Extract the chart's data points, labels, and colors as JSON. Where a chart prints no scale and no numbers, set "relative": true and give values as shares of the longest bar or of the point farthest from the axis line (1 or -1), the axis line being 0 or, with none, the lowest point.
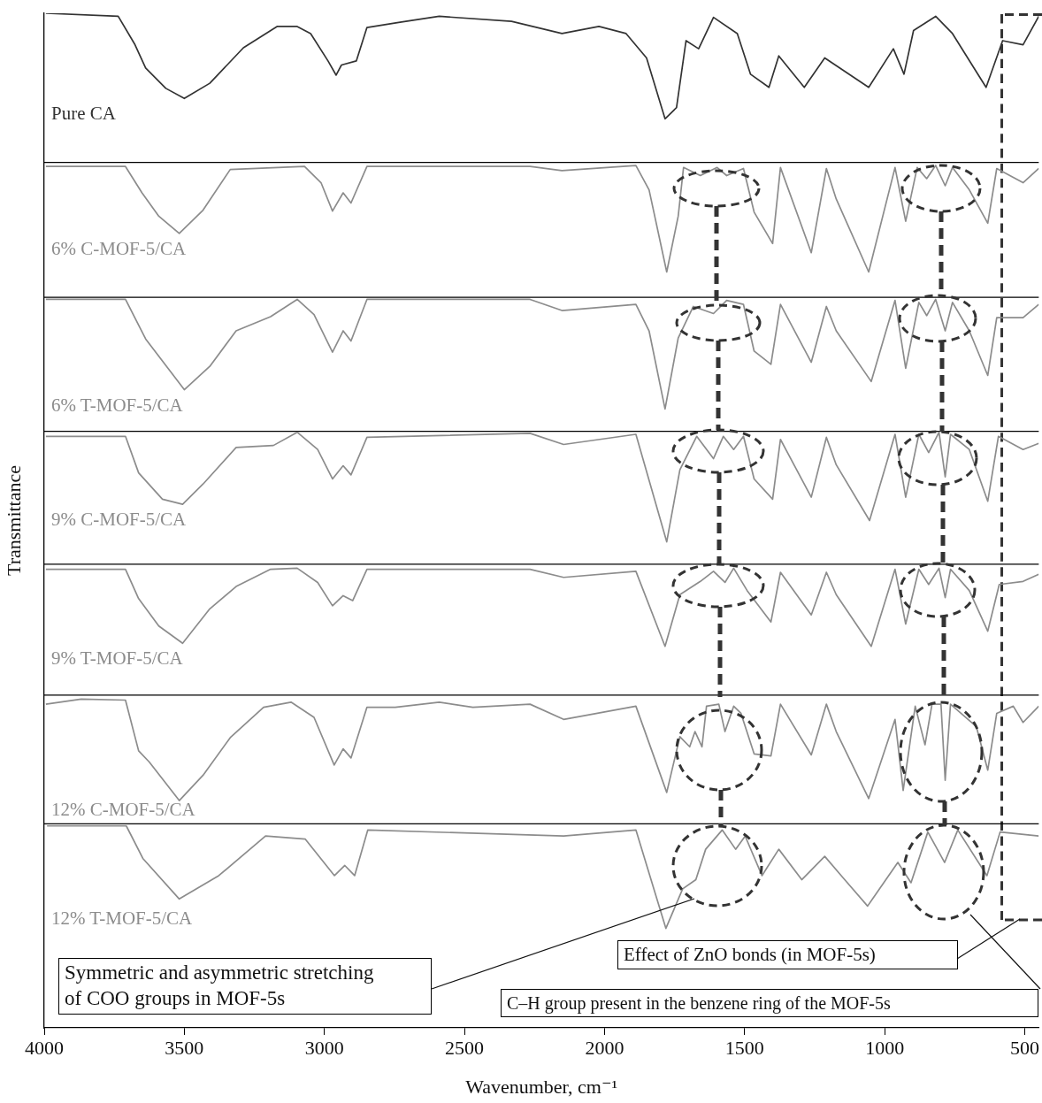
{
  "chart_data": {
    "type": "line",
    "xlabel": "Wavenumber, cm⁻¹",
    "ylabel": "Transmittance",
    "relative": true,
    "marker": "none",
    "tick_labels": "x",
    "xlim": [
      4000,
      450
    ],
    "xticks": [
      4000,
      3500,
      3000,
      2500,
      2000,
      1500,
      1000,
      500
    ],
    "annotations": [
      "Symmetric and asymmetric stretching of COO groups in MOF-5s",
      "Effect of ZnO bonds (in MOF-5s)",
      "C–H group present in the benzene ring of the MOF-5s"
    ],
    "ref_lines": [
      {
        "axis": "x",
        "value": 582,
        "color": "#333333",
        "line_style": "dashed"
      },
      {
        "axis": "y",
        "value": 0.853,
        "color": "#000000"
      },
      {
        "axis": "y",
        "value": 0.72,
        "color": "#000000"
      },
      {
        "axis": "y",
        "value": 0.588,
        "color": "#000000"
      },
      {
        "axis": "y",
        "value": 0.457,
        "color": "#000000"
      },
      {
        "axis": "y",
        "value": 0.328,
        "color": "#000000"
      },
      {
        "axis": "y",
        "value": 0.201,
        "color": "#000000"
      }
    ],
    "series": [
      {
        "name": "Pure CA",
        "color": "#333333",
        "x": [
          3994,
          3736,
          3676,
          3638,
          3566,
          3500,
          3409,
          3289,
          3169,
          3097,
          3049,
          2987,
          2958,
          2939,
          2886,
          2848,
          2735,
          2590,
          2332,
          2152,
          2020,
          1923,
          1850,
          1784,
          1743,
          1709,
          1664,
          1611,
          1526,
          1479,
          1413,
          1378,
          1287,
          1214,
          1057,
          969,
          931,
          897,
          818,
          758,
          638,
          579,
          506,
          450
        ],
        "values": [
          1,
          0.997,
          0.969,
          0.946,
          0.926,
          0.916,
          0.931,
          0.966,
          0.987,
          0.987,
          0.98,
          0.953,
          0.939,
          0.949,
          0.953,
          0.986,
          0.991,
          0.997,
          0.992,
          0.98,
          0.987,
          0.98,
          0.956,
          0.896,
          0.907,
          0.973,
          0.965,
          0.996,
          0.98,
          0.94,
          0.927,
          0.958,
          0.927,
          0.956,
          0.927,
          0.965,
          0.94,
          0.983,
          0.997,
          0.98,
          0.927,
          0.973,
          0.969,
          0.997
        ]
      },
      {
        "name": "6% C-MOF-5/CA",
        "color": "#8c8c8c",
        "x": [
          3994,
          3710,
          3651,
          3591,
          3518,
          3433,
          3336,
          3071,
          3012,
          2971,
          2933,
          2905,
          2848,
          2266,
          2152,
          1888,
          1841,
          1778,
          1737,
          1718,
          1658,
          1598,
          1564,
          1504,
          1466,
          1400,
          1372,
          1262,
          1208,
          1173,
          1057,
          963,
          925,
          884,
          850,
          818,
          784,
          758,
          698,
          632,
          600,
          506,
          450
        ],
        "values": [
          0.849,
          0.849,
          0.823,
          0.8,
          0.783,
          0.806,
          0.846,
          0.849,
          0.833,
          0.805,
          0.823,
          0.813,
          0.849,
          0.849,
          0.845,
          0.85,
          0.826,
          0.745,
          0.8,
          0.848,
          0.84,
          0.848,
          0.84,
          0.847,
          0.804,
          0.773,
          0.848,
          0.764,
          0.847,
          0.817,
          0.745,
          0.848,
          0.795,
          0.848,
          0.837,
          0.85,
          0.83,
          0.848,
          0.826,
          0.793,
          0.847,
          0.833,
          0.847
        ]
      },
      {
        "name": "6% T-MOF-5/CA",
        "color": "#8c8c8c",
        "x": [
          3994,
          3710,
          3638,
          3500,
          3409,
          3315,
          3192,
          3097,
          3037,
          2971,
          2933,
          2905,
          2848,
          2266,
          2152,
          1888,
          1841,
          1784,
          1737,
          1683,
          1611,
          1564,
          1504,
          1466,
          1406,
          1372,
          1262,
          1208,
          1173,
          1048,
          963,
          925,
          878,
          850,
          818,
          784,
          758,
          698,
          632,
          600,
          506,
          450
        ],
        "values": [
          0.718,
          0.718,
          0.679,
          0.629,
          0.652,
          0.687,
          0.701,
          0.718,
          0.703,
          0.666,
          0.687,
          0.677,
          0.718,
          0.718,
          0.707,
          0.713,
          0.687,
          0.61,
          0.68,
          0.711,
          0.704,
          0.717,
          0.713,
          0.667,
          0.654,
          0.713,
          0.656,
          0.711,
          0.687,
          0.637,
          0.717,
          0.65,
          0.715,
          0.702,
          0.718,
          0.687,
          0.715,
          0.687,
          0.643,
          0.7,
          0.7,
          0.713
        ]
      },
      {
        "name": "9% C-MOF-5/CA",
        "color": "#8c8c8c",
        "x": [
          3994,
          3710,
          3663,
          3578,
          3506,
          3433,
          3315,
          3182,
          3097,
          3024,
          2971,
          2933,
          2905,
          2848,
          2266,
          2146,
          1888,
          1778,
          1731,
          1671,
          1611,
          1576,
          1539,
          1504,
          1466,
          1400,
          1372,
          1262,
          1208,
          1173,
          1054,
          963,
          925,
          878,
          843,
          806,
          784,
          765,
          698,
          632,
          594,
          506,
          450
        ],
        "values": [
          0.583,
          0.583,
          0.547,
          0.521,
          0.516,
          0.536,
          0.572,
          0.574,
          0.587,
          0.57,
          0.541,
          0.554,
          0.545,
          0.582,
          0.586,
          0.575,
          0.585,
          0.479,
          0.55,
          0.583,
          0.561,
          0.583,
          0.57,
          0.583,
          0.541,
          0.521,
          0.58,
          0.523,
          0.582,
          0.555,
          0.5,
          0.585,
          0.523,
          0.585,
          0.567,
          0.587,
          0.543,
          0.585,
          0.57,
          0.519,
          0.583,
          0.57,
          0.576
        ]
      },
      {
        "name": "9% T-MOF-5/CA",
        "color": "#8c8c8c",
        "x": [
          3994,
          3710,
          3663,
          3591,
          3506,
          3409,
          3315,
          3192,
          3097,
          3024,
          2971,
          2933,
          2899,
          2848,
          2266,
          2146,
          1888,
          1784,
          1731,
          1658,
          1611,
          1570,
          1539,
          1491,
          1406,
          1372,
          1262,
          1208,
          1173,
          1048,
          963,
          925,
          878,
          843,
          806,
          784,
          765,
          698,
          632,
          591,
          506,
          450
        ],
        "values": [
          0.452,
          0.452,
          0.423,
          0.396,
          0.379,
          0.413,
          0.435,
          0.452,
          0.453,
          0.439,
          0.416,
          0.426,
          0.421,
          0.452,
          0.452,
          0.444,
          0.45,
          0.376,
          0.427,
          0.44,
          0.45,
          0.439,
          0.453,
          0.431,
          0.4,
          0.449,
          0.407,
          0.449,
          0.427,
          0.376,
          0.452,
          0.398,
          0.452,
          0.437,
          0.453,
          0.424,
          0.452,
          0.431,
          0.391,
          0.437,
          0.44,
          0.447
        ]
      },
      {
        "name": "12% C-MOF-5/CA",
        "color": "#8c8c8c",
        "x": [
          3994,
          3868,
          3710,
          3663,
          3625,
          3518,
          3433,
          3336,
          3217,
          3119,
          3037,
          2965,
          2933,
          2905,
          2848,
          2747,
          2590,
          2470,
          2266,
          2146,
          1888,
          1778,
          1731,
          1696,
          1677,
          1652,
          1636,
          1592,
          1570,
          1539,
          1513,
          1466,
          1406,
          1372,
          1262,
          1208,
          1173,
          1057,
          963,
          934,
          891,
          856,
          831,
          799,
          784,
          765,
          673,
          632,
          600,
          541,
          506,
          450
        ],
        "values": [
          0.319,
          0.324,
          0.323,
          0.273,
          0.262,
          0.224,
          0.249,
          0.286,
          0.316,
          0.321,
          0.306,
          0.259,
          0.275,
          0.266,
          0.316,
          0.316,
          0.321,
          0.316,
          0.319,
          0.304,
          0.317,
          0.232,
          0.287,
          0.277,
          0.292,
          0.277,
          0.317,
          0.319,
          0.292,
          0.317,
          0.31,
          0.27,
          0.268,
          0.319,
          0.269,
          0.319,
          0.292,
          0.226,
          0.304,
          0.234,
          0.317,
          0.279,
          0.319,
          0.319,
          0.244,
          0.319,
          0.297,
          0.254,
          0.31,
          0.317,
          0.301,
          0.317
        ]
      },
      {
        "name": "12% T-MOF-5/CA",
        "color": "#8c8c8c",
        "x": [
          3990,
          3707,
          3648,
          3518,
          3377,
          3210,
          3068,
          2964,
          2927,
          2892,
          2845,
          2146,
          1888,
          1781,
          1721,
          1674,
          1639,
          1580,
          1532,
          1498,
          1438,
          1378,
          1296,
          1214,
          1155,
          1061,
          953,
          906,
          846,
          786,
          739,
          635,
          588,
          450
        ],
        "values": [
          0.199,
          0.199,
          0.167,
          0.127,
          0.15,
          0.189,
          0.186,
          0.15,
          0.16,
          0.15,
          0.195,
          0.189,
          0.195,
          0.098,
          0.137,
          0.146,
          0.176,
          0.195,
          0.176,
          0.189,
          0.15,
          0.176,
          0.146,
          0.169,
          0.15,
          0.12,
          0.163,
          0.143,
          0.193,
          0.163,
          0.195,
          0.15,
          0.193,
          0.189
        ]
      }
    ]
  }
}
